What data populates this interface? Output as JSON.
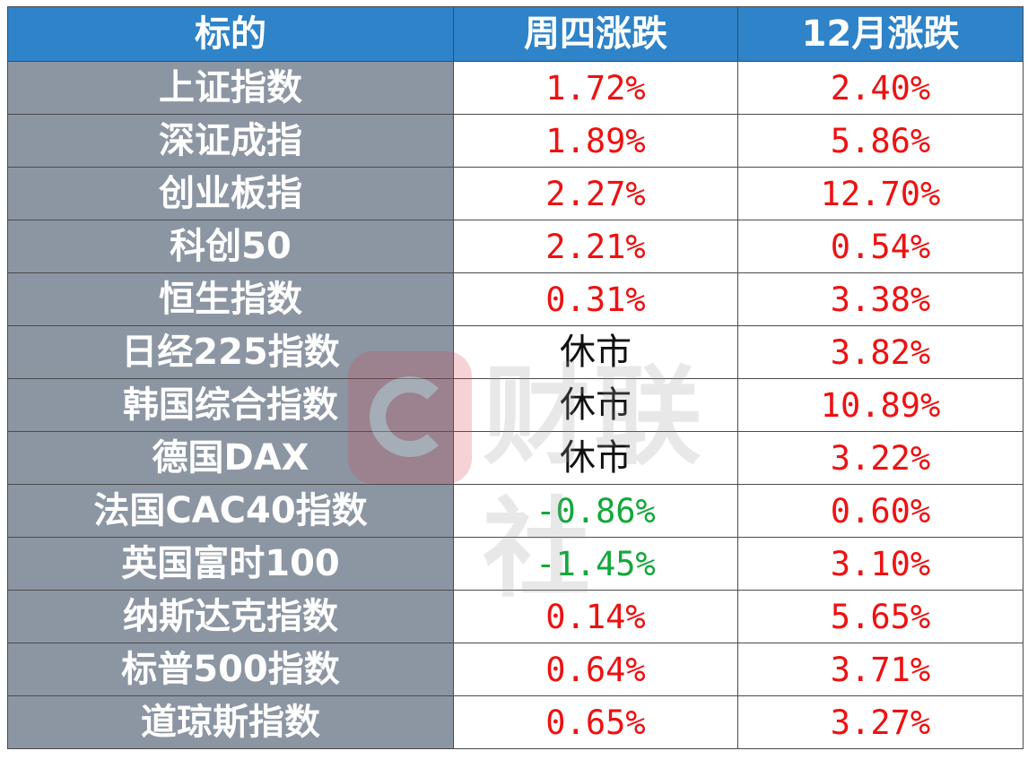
{
  "table": {
    "headers": [
      "标的",
      "周四涨跌",
      "12月涨跌"
    ],
    "rows": [
      {
        "name": "上证指数",
        "thu": "1.72%",
        "thu_status": "up",
        "dec": "2.40%"
      },
      {
        "name": "深证成指",
        "thu": "1.89%",
        "thu_status": "up",
        "dec": "5.86%"
      },
      {
        "name": "创业板指",
        "thu": "2.27%",
        "thu_status": "up",
        "dec": "12.70%"
      },
      {
        "name": "科创50",
        "thu": "2.21%",
        "thu_status": "up",
        "dec": "0.54%"
      },
      {
        "name": "恒生指数",
        "thu": "0.31%",
        "thu_status": "up",
        "dec": "3.38%"
      },
      {
        "name": "日经225指数",
        "thu": "休市",
        "thu_status": "closed",
        "dec": "3.82%"
      },
      {
        "name": "韩国综合指数",
        "thu": "休市",
        "thu_status": "closed",
        "dec": "10.89%"
      },
      {
        "name": "德国DAX",
        "thu": "休市",
        "thu_status": "closed",
        "dec": "3.22%"
      },
      {
        "name": "法国CAC40指数",
        "thu": "-0.86%",
        "thu_status": "down",
        "dec": "0.60%"
      },
      {
        "name": "英国富时100",
        "thu": "-1.45%",
        "thu_status": "down",
        "dec": "3.10%"
      },
      {
        "name": "纳斯达克指数",
        "thu": "0.14%",
        "thu_status": "up",
        "dec": "5.65%"
      },
      {
        "name": "标普500指数",
        "thu": "0.64%",
        "thu_status": "up",
        "dec": "3.71%"
      },
      {
        "name": "道琼斯指数",
        "thu": "0.65%",
        "thu_status": "up",
        "dec": "3.27%"
      }
    ]
  },
  "colors": {
    "header_bg": "#2f83c8",
    "name_col_bg": "#8c96a3",
    "up": "#ee1111",
    "down": "#12a83a",
    "closed": "#111111"
  },
  "watermark": {
    "logo_icon": "cailian-c-logo-icon",
    "text": "财联社"
  }
}
